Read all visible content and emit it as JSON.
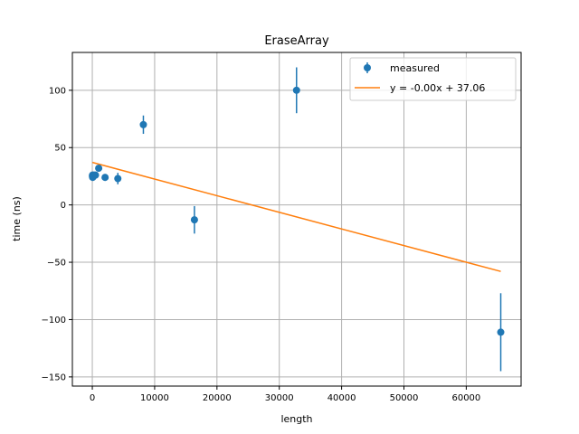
{
  "chart_data": {
    "type": "scatter",
    "title": "EraseArray",
    "xlabel": "length",
    "ylabel": "time (ns)",
    "xlim": [
      -3200,
      68800
    ],
    "ylim": [
      -158,
      133
    ],
    "xticks": [
      0,
      10000,
      20000,
      30000,
      40000,
      50000,
      60000
    ],
    "xtick_labels": [
      "0",
      "10000",
      "20000",
      "30000",
      "40000",
      "50000",
      "60000"
    ],
    "yticks": [
      -150,
      -100,
      -50,
      0,
      50,
      100
    ],
    "ytick_labels": [
      "−150",
      "−100",
      "−50",
      "0",
      "50",
      "100"
    ],
    "grid": true,
    "legend_position": "top-right",
    "series": [
      {
        "name": "measured",
        "kind": "errorbar",
        "color": "#1f77b4",
        "x": [
          16,
          32,
          64,
          128,
          256,
          512,
          1024,
          2048,
          4096,
          8192,
          16384,
          32768,
          65536
        ],
        "y": [
          25,
          26,
          24,
          25,
          26,
          26,
          32,
          24,
          23,
          70,
          -13,
          100,
          -111
        ],
        "yerr": [
          2,
          2,
          2,
          2,
          2,
          2,
          3,
          3,
          5,
          8,
          12,
          20,
          34
        ]
      },
      {
        "name": "y = -0.00x + 37.06",
        "kind": "line",
        "color": "#ff7f0e",
        "x": [
          16,
          65536
        ],
        "y": [
          37.06,
          -58
        ]
      }
    ]
  }
}
